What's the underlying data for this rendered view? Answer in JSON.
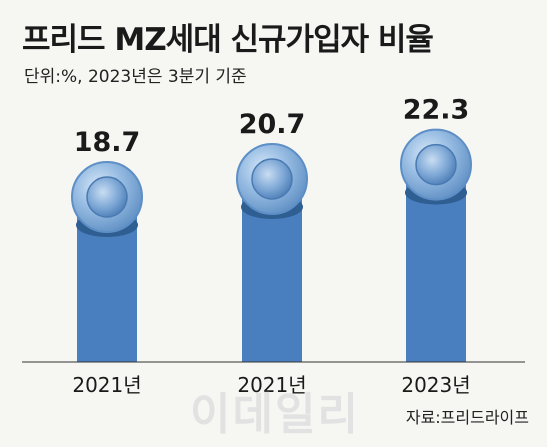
{
  "header": {
    "title": "프리드 MZ세대 신규가입자 비율",
    "subtitle": "단위:%, 2023년은 3분기 기준"
  },
  "footer": {
    "watermark": "이데일리",
    "source": "자료:프리드라이프"
  },
  "colors": {
    "bar": "#4a7fbf",
    "bar_dark": "#2f5e93",
    "ball": "#8ab3de",
    "ball_rim": "#5d8fc6"
  },
  "chart_data": {
    "type": "bar",
    "title": "프리드 MZ세대 신규가입자 비율",
    "categories": [
      "2021년",
      "2021년",
      "2023년"
    ],
    "values": [
      18.7,
      20.7,
      22.3
    ],
    "value_labels": [
      "18.7",
      "20.7",
      "22.3"
    ],
    "xlabel": "",
    "ylabel": "",
    "grid": false,
    "legend": "none"
  }
}
